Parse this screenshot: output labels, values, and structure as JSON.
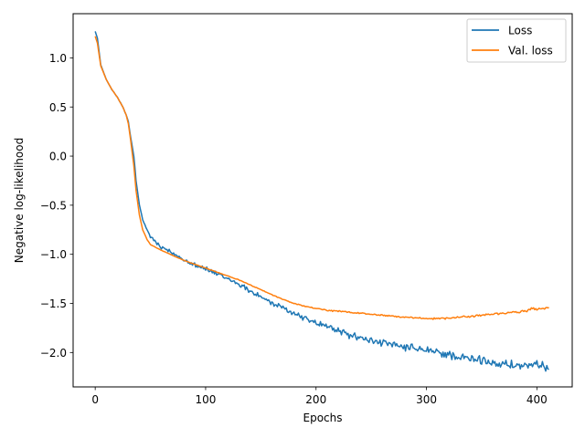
{
  "chart_data": {
    "type": "line",
    "title": "",
    "xlabel": "Epochs",
    "ylabel": "Negative log-likelihood",
    "xlim": [
      -20,
      432
    ],
    "ylim": [
      -2.35,
      1.45
    ],
    "xticks": [
      0,
      100,
      200,
      300,
      400
    ],
    "yticks": [
      -2.0,
      -1.5,
      -1.0,
      -0.5,
      0.0,
      0.5,
      1.0
    ],
    "xtick_labels": [
      "0",
      "100",
      "200",
      "300",
      "400"
    ],
    "ytick_labels": [
      "−2.0",
      "−1.5",
      "−1.0",
      "−0.5",
      "0.0",
      "0.5",
      "1.0"
    ],
    "grid": false,
    "legend_position": "top-right",
    "series": [
      {
        "name": "Loss",
        "color": "#1f77b4",
        "keypoints": [
          [
            0,
            1.27
          ],
          [
            2,
            1.2
          ],
          [
            5,
            0.93
          ],
          [
            10,
            0.78
          ],
          [
            15,
            0.68
          ],
          [
            20,
            0.6
          ],
          [
            25,
            0.5
          ],
          [
            28,
            0.42
          ],
          [
            30,
            0.35
          ],
          [
            32,
            0.2
          ],
          [
            35,
            0.0
          ],
          [
            37,
            -0.25
          ],
          [
            40,
            -0.5
          ],
          [
            43,
            -0.65
          ],
          [
            47,
            -0.75
          ],
          [
            50,
            -0.82
          ],
          [
            55,
            -0.88
          ],
          [
            60,
            -0.93
          ],
          [
            70,
            -0.99
          ],
          [
            80,
            -1.05
          ],
          [
            90,
            -1.1
          ],
          [
            100,
            -1.15
          ],
          [
            110,
            -1.2
          ],
          [
            120,
            -1.25
          ],
          [
            130,
            -1.3
          ],
          [
            140,
            -1.37
          ],
          [
            150,
            -1.43
          ],
          [
            160,
            -1.5
          ],
          [
            170,
            -1.55
          ],
          [
            180,
            -1.6
          ],
          [
            190,
            -1.65
          ],
          [
            200,
            -1.7
          ],
          [
            210,
            -1.73
          ],
          [
            220,
            -1.78
          ],
          [
            230,
            -1.82
          ],
          [
            240,
            -1.85
          ],
          [
            250,
            -1.88
          ],
          [
            260,
            -1.9
          ],
          [
            270,
            -1.93
          ],
          [
            280,
            -1.95
          ],
          [
            290,
            -1.96
          ],
          [
            300,
            -1.98
          ],
          [
            310,
            -2.0
          ],
          [
            320,
            -2.02
          ],
          [
            330,
            -2.05
          ],
          [
            340,
            -2.07
          ],
          [
            350,
            -2.08
          ],
          [
            360,
            -2.1
          ],
          [
            370,
            -2.12
          ],
          [
            380,
            -2.13
          ],
          [
            390,
            -2.14
          ],
          [
            400,
            -2.14
          ],
          [
            411,
            -2.15
          ]
        ],
        "noise": [
          [
            0,
            0
          ],
          [
            45,
            0.01
          ],
          [
            55,
            0.03
          ],
          [
            150,
            0.035
          ],
          [
            250,
            0.045
          ],
          [
            300,
            0.055
          ],
          [
            411,
            0.06
          ]
        ]
      },
      {
        "name": "Val. loss",
        "color": "#ff7f0e",
        "keypoints": [
          [
            0,
            1.22
          ],
          [
            2,
            1.15
          ],
          [
            5,
            0.92
          ],
          [
            10,
            0.78
          ],
          [
            15,
            0.68
          ],
          [
            20,
            0.6
          ],
          [
            25,
            0.5
          ],
          [
            28,
            0.42
          ],
          [
            30,
            0.33
          ],
          [
            32,
            0.17
          ],
          [
            35,
            -0.1
          ],
          [
            37,
            -0.35
          ],
          [
            40,
            -0.6
          ],
          [
            43,
            -0.75
          ],
          [
            47,
            -0.85
          ],
          [
            50,
            -0.9
          ],
          [
            55,
            -0.93
          ],
          [
            60,
            -0.96
          ],
          [
            70,
            -1.01
          ],
          [
            80,
            -1.06
          ],
          [
            90,
            -1.1
          ],
          [
            100,
            -1.14
          ],
          [
            110,
            -1.18
          ],
          [
            120,
            -1.22
          ],
          [
            130,
            -1.26
          ],
          [
            140,
            -1.31
          ],
          [
            150,
            -1.36
          ],
          [
            160,
            -1.41
          ],
          [
            170,
            -1.46
          ],
          [
            180,
            -1.5
          ],
          [
            190,
            -1.53
          ],
          [
            200,
            -1.55
          ],
          [
            210,
            -1.57
          ],
          [
            220,
            -1.58
          ],
          [
            230,
            -1.59
          ],
          [
            240,
            -1.6
          ],
          [
            250,
            -1.61
          ],
          [
            260,
            -1.62
          ],
          [
            270,
            -1.63
          ],
          [
            280,
            -1.64
          ],
          [
            290,
            -1.65
          ],
          [
            300,
            -1.655
          ],
          [
            310,
            -1.655
          ],
          [
            320,
            -1.65
          ],
          [
            330,
            -1.64
          ],
          [
            340,
            -1.63
          ],
          [
            350,
            -1.62
          ],
          [
            360,
            -1.61
          ],
          [
            370,
            -1.6
          ],
          [
            380,
            -1.59
          ],
          [
            390,
            -1.58
          ],
          [
            395,
            -1.55
          ],
          [
            400,
            -1.56
          ],
          [
            405,
            -1.55
          ],
          [
            411,
            -1.55
          ]
        ],
        "noise": [
          [
            0,
            0
          ],
          [
            150,
            0.004
          ],
          [
            250,
            0.01
          ],
          [
            411,
            0.014
          ]
        ]
      }
    ]
  }
}
